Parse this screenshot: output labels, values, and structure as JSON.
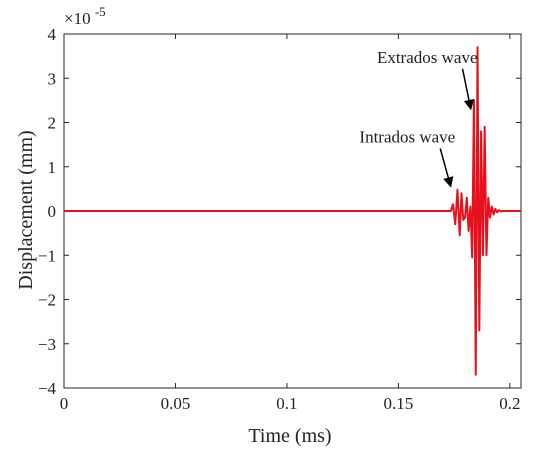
{
  "chart_data": {
    "type": "line",
    "xlabel": "Time (ms)",
    "ylabel": "Displacement (mm)",
    "y_multiplier_label": {
      "base": "×10",
      "exponent": "-5"
    },
    "xlim": [
      0,
      0.205
    ],
    "ylim": [
      -4,
      4
    ],
    "xticks": [
      0,
      0.05,
      0.1,
      0.15,
      0.2
    ],
    "xtick_labels": [
      "0",
      "0.05",
      "0.1",
      "0.15",
      "0.2"
    ],
    "yticks": [
      -4,
      -3,
      -2,
      -1,
      0,
      1,
      2,
      3,
      4
    ],
    "ytick_labels": [
      "−4",
      "−3",
      "−2",
      "−1",
      "0",
      "1",
      "2",
      "3",
      "4"
    ],
    "grid": false,
    "series": [
      {
        "color": "#e8101a",
        "x": [
          0,
          0.1735,
          0.1745,
          0.1755,
          0.1765,
          0.1775,
          0.1783,
          0.1791,
          0.1799,
          0.1807,
          0.1815,
          0.1823,
          0.1831,
          0.1839,
          0.1847,
          0.1855,
          0.1863,
          0.1871,
          0.1879,
          0.1887,
          0.1895,
          0.1903,
          0.1911,
          0.1919,
          0.1927,
          0.1935,
          0.1943,
          0.1951,
          0.1959,
          0.1967,
          0.1975,
          0.1983,
          0.1991,
          0.1999,
          0.2007,
          0.205
        ],
        "values": [
          0,
          0,
          0.15,
          -0.3,
          0.48,
          -0.55,
          0.4,
          -0.2,
          -0.15,
          0.3,
          -0.45,
          0.1,
          -1.05,
          2.5,
          -3.7,
          3.7,
          -2.7,
          1.8,
          -1.0,
          1.9,
          -1.0,
          0.3,
          -0.15,
          0.1,
          -0.08,
          0.05,
          -0.03,
          0.02,
          -0.01,
          0,
          0,
          0,
          0,
          0,
          0,
          0
        ]
      }
    ],
    "annotations": [
      {
        "text": "Extrados wave",
        "x": 0.1855,
        "y": 3.35,
        "point_x": 0.1825,
        "point_y": 2.3
      },
      {
        "text": "Intrados wave",
        "x": 0.1755,
        "y": 1.55,
        "point_x": 0.1735,
        "point_y": 0.55
      }
    ]
  }
}
